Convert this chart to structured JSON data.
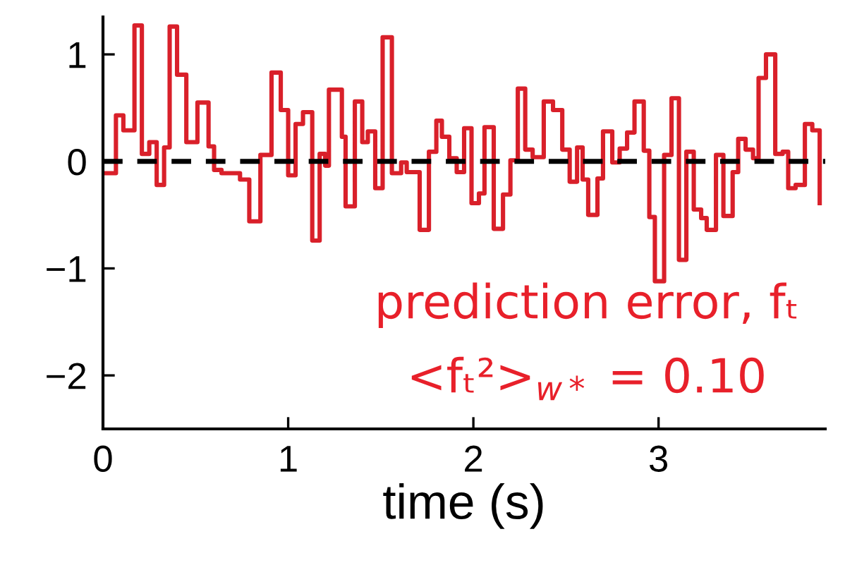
{
  "chart_data": {
    "type": "step",
    "xlabel": "time (s)",
    "xlim": [
      0,
      3.9
    ],
    "xticks": [
      0,
      1,
      2,
      3
    ],
    "ylim": [
      -2.5,
      1.35
    ],
    "yticks": [
      {
        "value": -2,
        "label": "−2"
      },
      {
        "value": -1,
        "label": "−1"
      },
      0,
      1
    ],
    "grid": false,
    "marker": "none",
    "line_style": "solid",
    "ref_lines": [
      {
        "axis": "y",
        "value": 0,
        "color": "#000000",
        "line_style": "dashed"
      }
    ],
    "annotations": [
      "prediction error, fₜ",
      "<fₜ²>$_{w*}$ = 0.10"
    ],
    "series": [
      {
        "color": "#d9202a",
        "x": [
          0.0,
          0.07,
          0.11,
          0.17,
          0.21,
          0.25,
          0.29,
          0.33,
          0.36,
          0.4,
          0.45,
          0.51,
          0.57,
          0.6,
          0.64,
          0.74,
          0.79,
          0.85,
          0.91,
          0.96,
          1.0,
          1.04,
          1.08,
          1.13,
          1.17,
          1.2,
          1.22,
          1.29,
          1.31,
          1.36,
          1.4,
          1.43,
          1.47,
          1.51,
          1.56,
          1.61,
          1.64,
          1.71,
          1.76,
          1.8,
          1.83,
          1.87,
          1.91,
          1.95,
          1.99,
          2.03,
          2.06,
          2.11,
          2.16,
          2.2,
          2.24,
          2.28,
          2.32,
          2.38,
          2.43,
          2.48,
          2.52,
          2.56,
          2.59,
          2.62,
          2.67,
          2.7,
          2.75,
          2.79,
          2.83,
          2.87,
          2.92,
          2.95,
          2.98,
          3.03,
          3.07,
          3.11,
          3.15,
          3.19,
          3.23,
          3.26,
          3.31,
          3.35,
          3.4,
          3.43,
          3.47,
          3.51,
          3.54,
          3.58,
          3.63,
          3.67,
          3.7,
          3.74,
          3.79,
          3.83,
          3.87
        ],
        "values": [
          -0.11,
          0.43,
          0.29,
          1.27,
          0.07,
          0.18,
          -0.22,
          0.13,
          1.26,
          0.81,
          0.18,
          0.55,
          0.14,
          -0.08,
          -0.11,
          -0.17,
          -0.56,
          0.06,
          0.83,
          0.48,
          -0.13,
          0.35,
          0.46,
          -0.74,
          0.07,
          -0.04,
          0.67,
          0.23,
          -0.42,
          0.56,
          0.18,
          0.28,
          -0.25,
          1.16,
          -0.11,
          -0.01,
          -0.1,
          -0.64,
          0.09,
          0.38,
          0.23,
          0.03,
          -0.1,
          0.31,
          -0.39,
          -0.3,
          0.32,
          -0.63,
          -0.31,
          0.01,
          0.68,
          0.11,
          0.04,
          0.56,
          0.48,
          0.11,
          -0.19,
          0.13,
          -0.17,
          -0.5,
          -0.16,
          0.28,
          -0.01,
          0.12,
          0.27,
          0.56,
          0.1,
          -0.52,
          -1.12,
          0.06,
          0.59,
          -0.92,
          0.09,
          -0.45,
          -0.53,
          -0.64,
          0.06,
          -0.51,
          -0.1,
          0.21,
          0.11,
          0.03,
          0.78,
          1.0,
          0.07,
          0.09,
          -0.25,
          -0.22,
          0.35,
          0.29,
          -0.39
        ]
      }
    ]
  }
}
